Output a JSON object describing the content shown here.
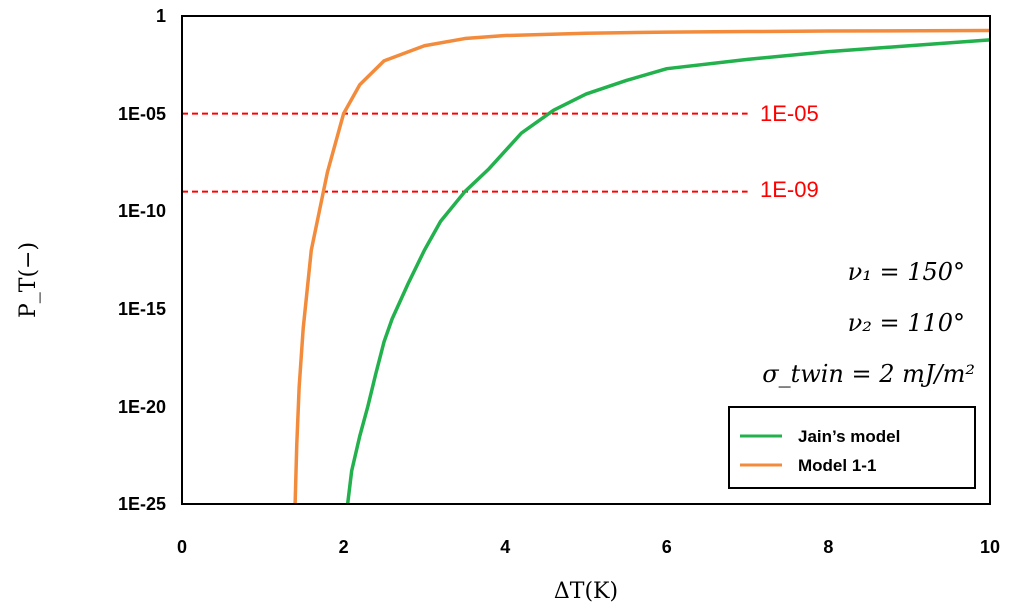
{
  "chart_data": {
    "type": "line",
    "xlabel": "ΔT(K)",
    "ylabel": "P_T(−)",
    "xlim": [
      0,
      10
    ],
    "ylim_log10": [
      -25,
      0
    ],
    "log_y": true,
    "grid": false,
    "x_ticks": [
      "0",
      "2",
      "4",
      "6",
      "8",
      "10"
    ],
    "y_ticks": [
      "1",
      "1E-05",
      "1E-10",
      "1E-15",
      "1E-20",
      "1E-25"
    ],
    "reference_lines": [
      {
        "y": 1e-05,
        "label": "1E-05",
        "x_end": 7.0,
        "color": "#ff0000"
      },
      {
        "y": 1e-09,
        "label": "1E-09",
        "x_end": 7.0,
        "color": "#ff0000"
      }
    ],
    "annotations": [
      "ν₁ = 150°",
      "ν₂ = 110°",
      "σ_twin = 2 mJ/m²"
    ],
    "legend_position": "bottom-right",
    "series": [
      {
        "name": "Jain’s model",
        "color": "#22b14c",
        "x": [
          2.05,
          2.1,
          2.2,
          2.3,
          2.4,
          2.5,
          2.6,
          2.8,
          3.0,
          3.2,
          3.5,
          3.8,
          4.2,
          4.6,
          5.0,
          5.5,
          6.0,
          7.0,
          8.0,
          9.0,
          10.0
        ],
        "y": [
          1e-25,
          5e-24,
          3e-22,
          1e-20,
          5e-19,
          2e-17,
          3e-16,
          2e-14,
          1e-12,
          3e-11,
          1e-09,
          1.5e-08,
          1e-06,
          1.5e-05,
          0.0001,
          0.0005,
          0.002,
          0.006,
          0.015,
          0.03,
          0.06
        ]
      },
      {
        "name": "Model 1-1",
        "color": "#f28c3c",
        "x": [
          1.4,
          1.42,
          1.45,
          1.5,
          1.55,
          1.6,
          1.7,
          1.8,
          2.0,
          2.2,
          2.5,
          3.0,
          3.5,
          4.0,
          5.0,
          6.0,
          7.0,
          8.0,
          10.0
        ],
        "y": [
          1e-25,
          1e-22,
          1e-19,
          1e-16,
          1e-14,
          1e-12,
          1e-10,
          1e-08,
          1e-05,
          0.0003,
          0.005,
          0.03,
          0.07,
          0.1,
          0.13,
          0.15,
          0.16,
          0.17,
          0.18
        ]
      }
    ]
  }
}
